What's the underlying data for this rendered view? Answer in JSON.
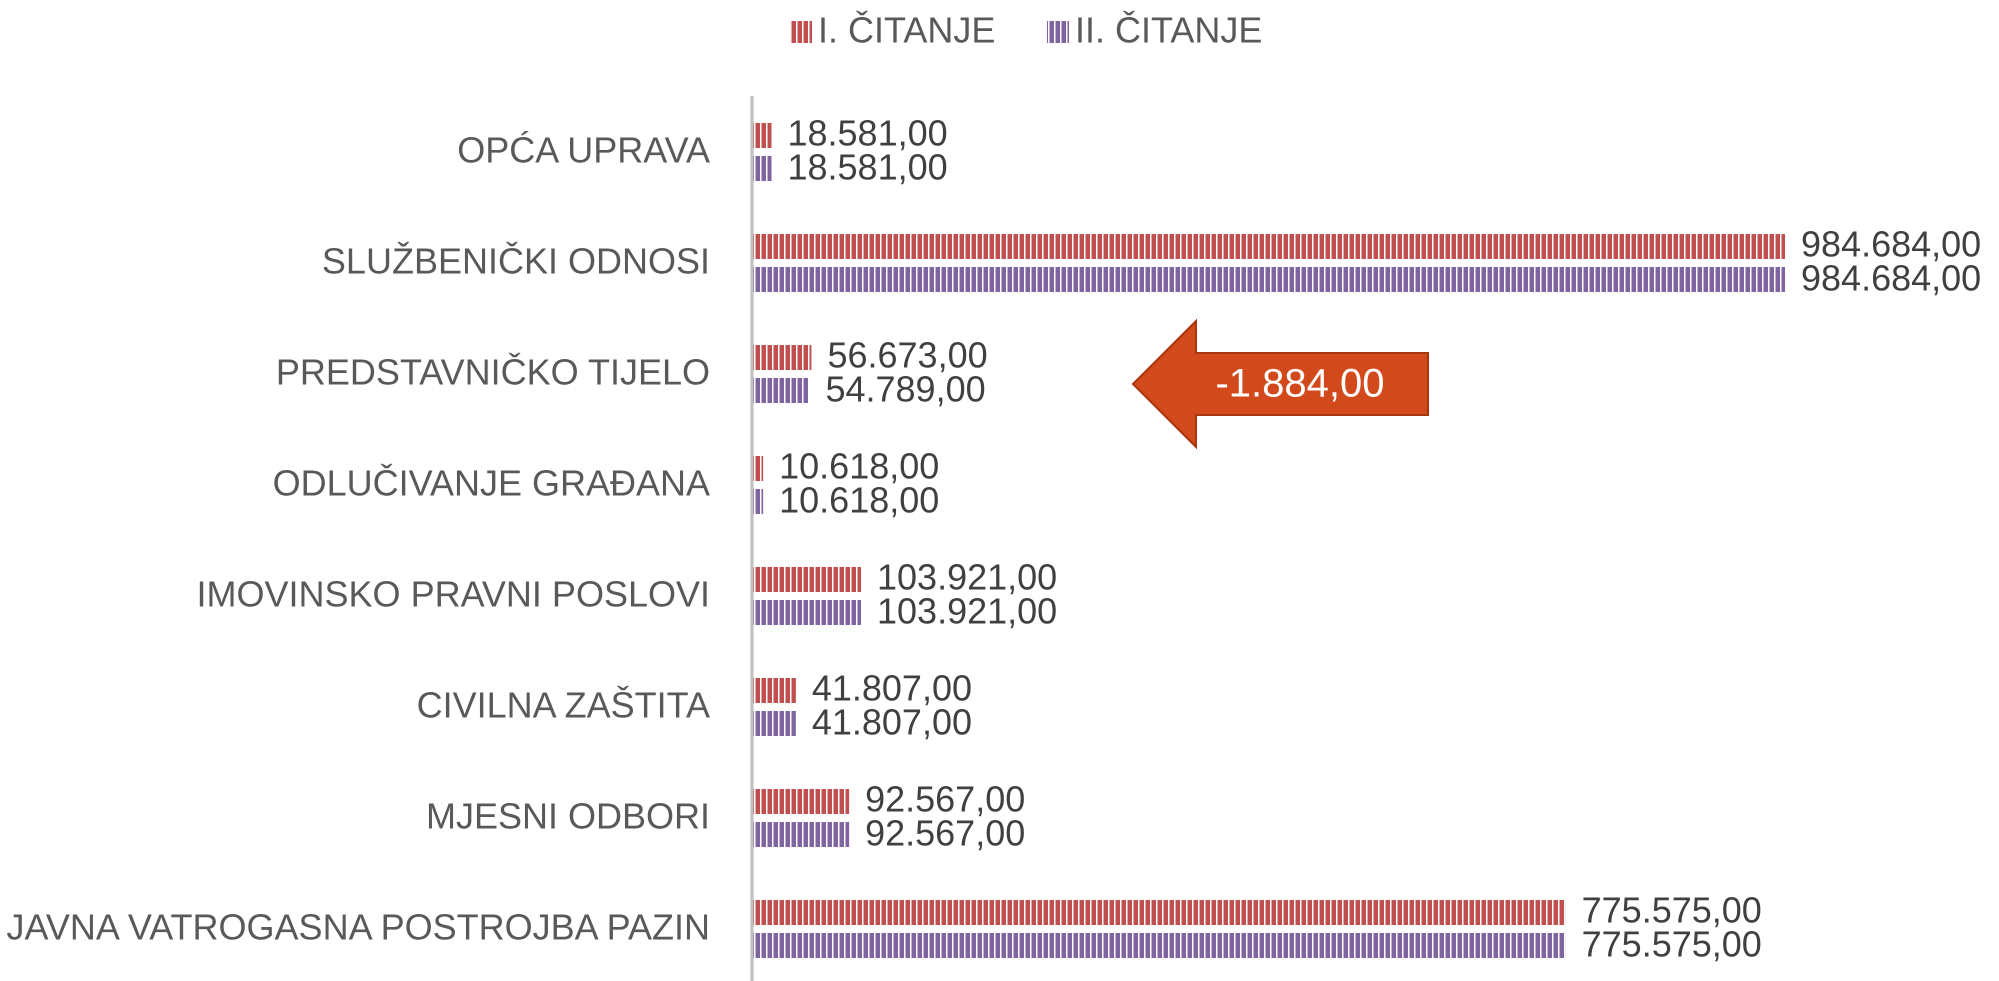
{
  "chart_data": {
    "type": "bar",
    "orientation": "horizontal",
    "categories": [
      "OPĆA UPRAVA",
      "SLUŽBENIČKI ODNOSI",
      "PREDSTAVNIČKO TIJELO",
      "ODLUČIVANJE GRAĐANA",
      "IMOVINSKO PRAVNI POSLOVI",
      "CIVILNA ZAŠTITA",
      "MJESNI ODBORI",
      "JAVNA VATROGASNA POSTROJBA PAZIN"
    ],
    "series": [
      {
        "name": "I. ČITANJE",
        "color": "#c0504d",
        "values": [
          18581,
          984684,
          56673,
          10618,
          103921,
          41807,
          92567,
          775575
        ],
        "value_labels": [
          "18.581,00",
          "984.684,00",
          "56.673,00",
          "10.618,00",
          "103.921,00",
          "41.807,00",
          "92.567,00",
          "775.575,00"
        ]
      },
      {
        "name": "II. ČITANJE",
        "color": "#8064a2",
        "values": [
          18581,
          984684,
          54789,
          10618,
          103921,
          41807,
          92567,
          775575
        ],
        "value_labels": [
          "18.581,00",
          "984.684,00",
          "54.789,00",
          "10.618,00",
          "103.921,00",
          "41.807,00",
          "92.567,00",
          "775.575,00"
        ]
      }
    ],
    "annotations": [
      "-1.884,00"
    ],
    "legend": "top"
  }
}
